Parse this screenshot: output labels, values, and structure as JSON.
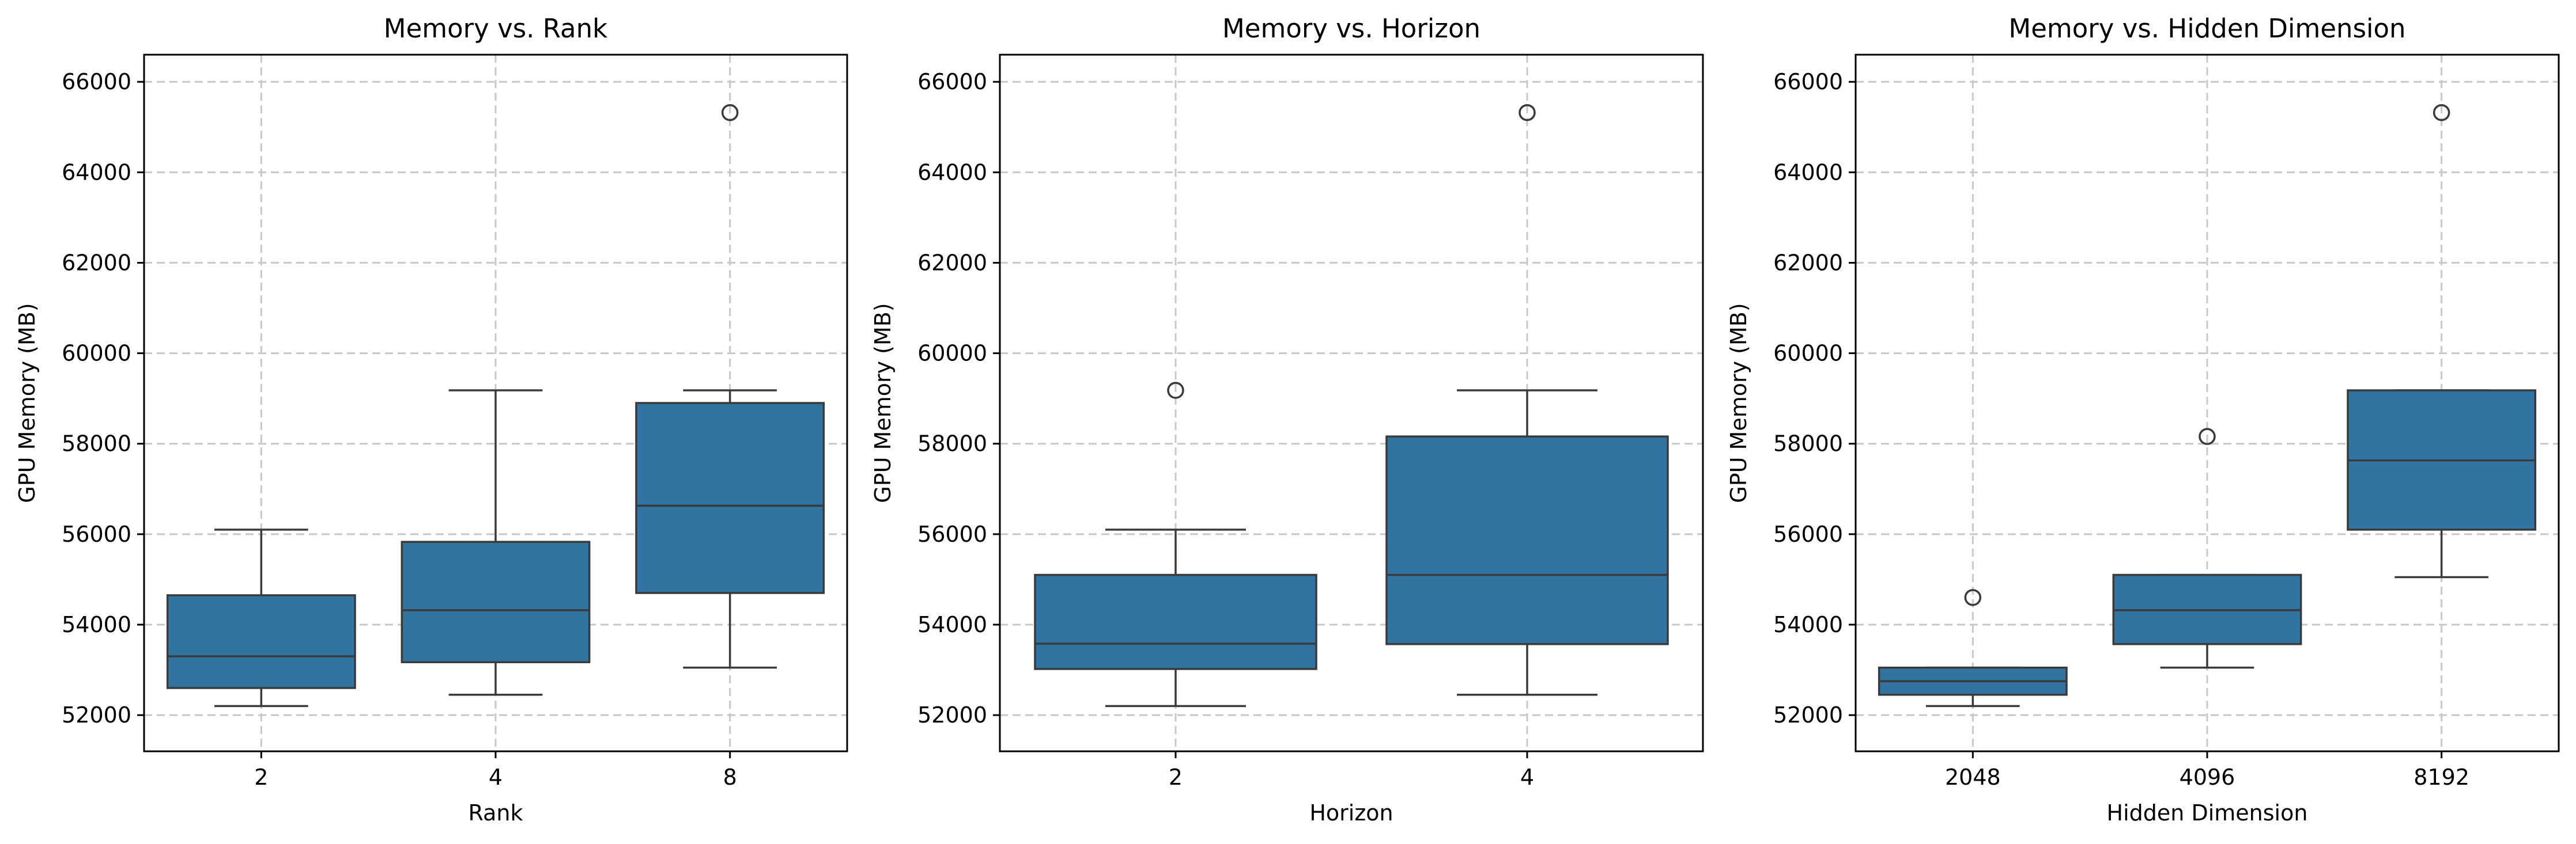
{
  "colors": {
    "box_fill": "#3274a1",
    "line": "#3a3a3a",
    "grid": "#c8c8c8"
  },
  "chart_data": [
    {
      "type": "box",
      "title": "Memory vs. Rank",
      "xlabel": "Rank",
      "ylabel": "GPU Memory (MB)",
      "ylim": [
        51200,
        66600
      ],
      "yticks": [
        52000,
        54000,
        56000,
        58000,
        60000,
        62000,
        64000,
        66000
      ],
      "grid": true,
      "categories": [
        "2",
        "4",
        "8"
      ],
      "boxes": [
        {
          "whisker_low": 52200,
          "q1": 52600,
          "median": 53300,
          "q3": 54650,
          "whisker_high": 56100,
          "outliers": []
        },
        {
          "whisker_low": 52450,
          "q1": 53170,
          "median": 54320,
          "q3": 55830,
          "whisker_high": 59180,
          "outliers": []
        },
        {
          "whisker_low": 53050,
          "q1": 54700,
          "median": 56630,
          "q3": 58900,
          "whisker_high": 59180,
          "outliers": [
            65320
          ]
        }
      ]
    },
    {
      "type": "box",
      "title": "Memory vs. Horizon",
      "xlabel": "Horizon",
      "ylabel": "GPU Memory (MB)",
      "ylim": [
        51200,
        66600
      ],
      "yticks": [
        52000,
        54000,
        56000,
        58000,
        60000,
        62000,
        64000,
        66000
      ],
      "grid": true,
      "categories": [
        "2",
        "4"
      ],
      "boxes": [
        {
          "whisker_low": 52200,
          "q1": 53020,
          "median": 53580,
          "q3": 55100,
          "whisker_high": 56100,
          "outliers": [
            59180
          ]
        },
        {
          "whisker_low": 52450,
          "q1": 53570,
          "median": 55100,
          "q3": 58160,
          "whisker_high": 59180,
          "outliers": [
            65320
          ]
        }
      ]
    },
    {
      "type": "box",
      "title": "Memory vs. Hidden Dimension",
      "xlabel": "Hidden Dimension",
      "ylabel": "GPU Memory (MB)",
      "ylim": [
        51200,
        66600
      ],
      "yticks": [
        52000,
        54000,
        56000,
        58000,
        60000,
        62000,
        64000,
        66000
      ],
      "grid": true,
      "categories": [
        "2048",
        "4096",
        "8192"
      ],
      "boxes": [
        {
          "whisker_low": 52200,
          "q1": 52450,
          "median": 52750,
          "q3": 53050,
          "whisker_high": 53050,
          "outliers": [
            54600
          ]
        },
        {
          "whisker_low": 53050,
          "q1": 53570,
          "median": 54320,
          "q3": 55100,
          "whisker_high": 55100,
          "outliers": [
            58160
          ]
        },
        {
          "whisker_low": 55050,
          "q1": 56100,
          "median": 57630,
          "q3": 59180,
          "whisker_high": 59180,
          "outliers": [
            65320
          ]
        }
      ]
    }
  ]
}
